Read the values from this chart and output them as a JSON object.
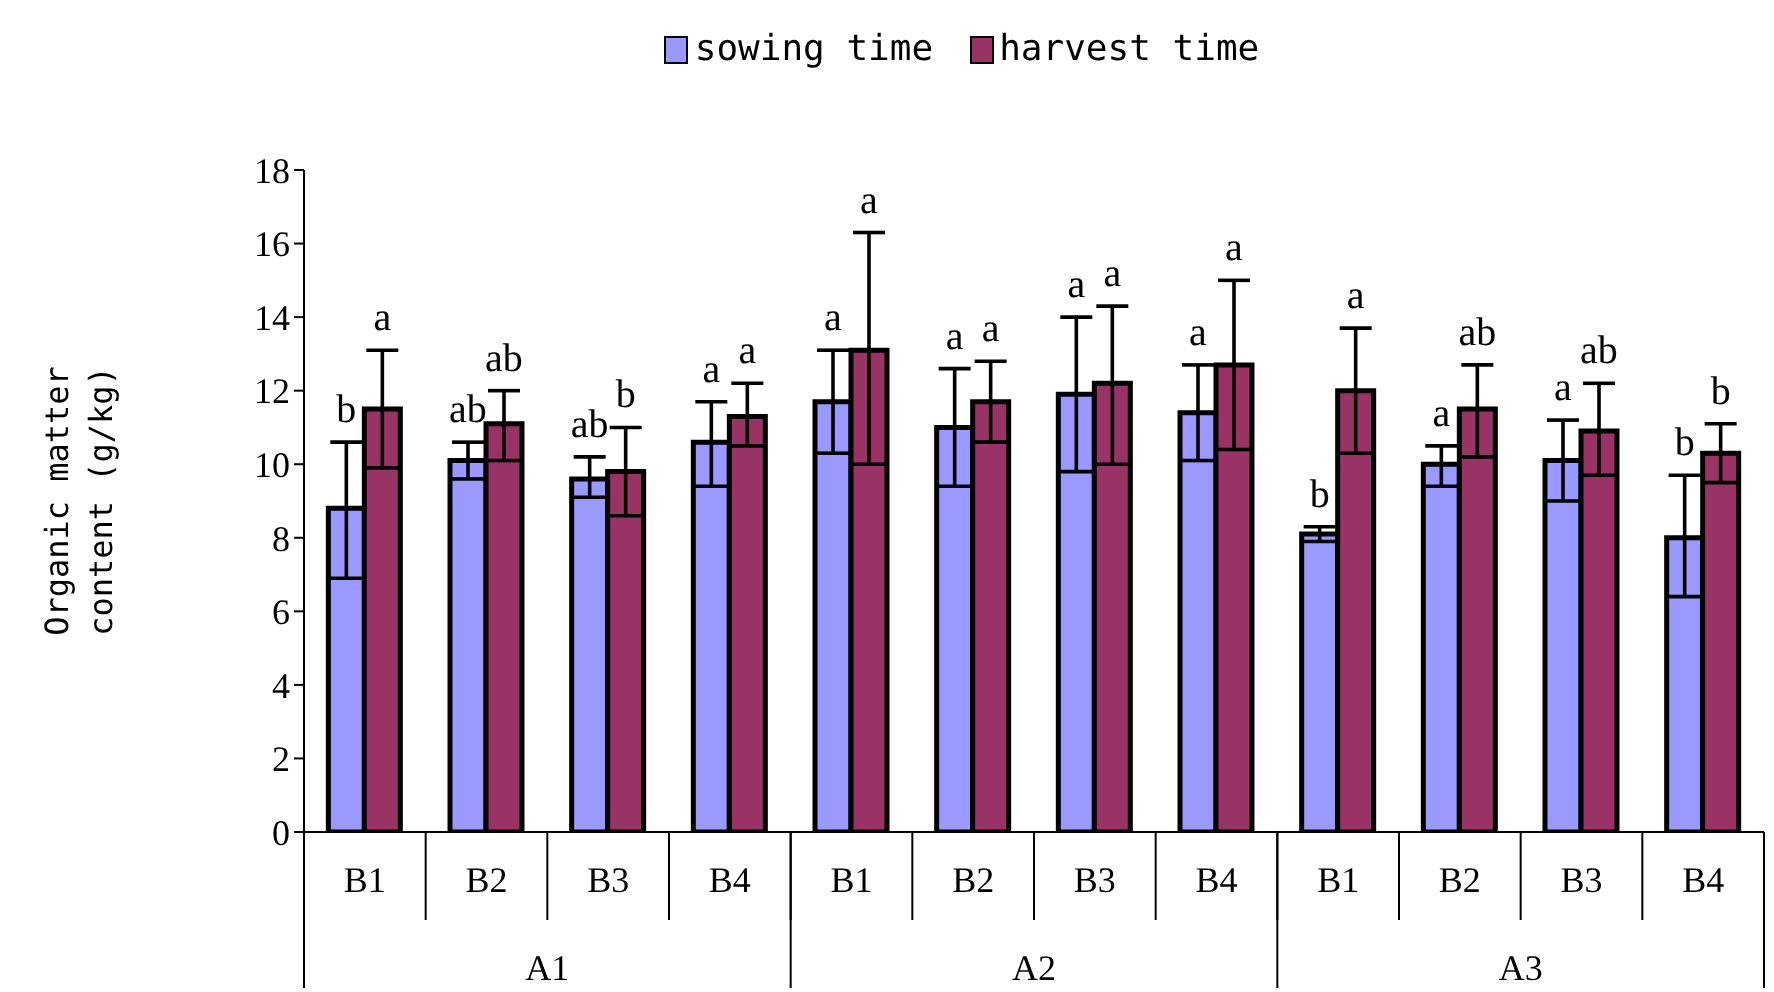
{
  "chart_data": {
    "type": "bar",
    "ylabel": "Organic matter content (g/kg)",
    "categories": [
      "B1",
      "B2",
      "B3",
      "B4",
      "B1",
      "B2",
      "B3",
      "B4",
      "B1",
      "B2",
      "B3",
      "B4"
    ],
    "annotations": [
      "A1",
      "A2",
      "A3"
    ],
    "series": [
      {
        "name": "sowing time",
        "color": "#9999ff",
        "values": [
          8.8,
          10.1,
          9.6,
          10.6,
          11.7,
          11.0,
          11.9,
          11.4,
          8.1,
          10.0,
          10.1,
          8.0
        ],
        "errors": [
          [
            6.9,
            10.6
          ],
          [
            9.6,
            10.6
          ],
          [
            9.1,
            10.2
          ],
          [
            9.4,
            11.7
          ],
          [
            10.3,
            13.1
          ],
          [
            9.4,
            12.6
          ],
          [
            9.8,
            14.0
          ],
          [
            10.1,
            12.7
          ],
          [
            7.9,
            8.3
          ],
          [
            9.4,
            10.5
          ],
          [
            9.0,
            11.2
          ],
          [
            6.4,
            9.7
          ]
        ],
        "value_labels": [
          "b",
          "ab",
          "ab",
          "a",
          "a",
          "a",
          "a",
          "a",
          "b",
          "a",
          "a",
          "b"
        ]
      },
      {
        "name": "harvest time",
        "color": "#993366",
        "values": [
          11.5,
          11.1,
          9.8,
          11.3,
          13.1,
          11.7,
          12.2,
          12.7,
          12.0,
          11.5,
          10.9,
          10.3
        ],
        "errors": [
          [
            9.9,
            13.1
          ],
          [
            10.1,
            12.0
          ],
          [
            8.6,
            11.0
          ],
          [
            10.5,
            12.2
          ],
          [
            10.0,
            16.3
          ],
          [
            10.6,
            12.8
          ],
          [
            10.0,
            14.3
          ],
          [
            10.4,
            15.0
          ],
          [
            10.3,
            13.7
          ],
          [
            10.2,
            12.7
          ],
          [
            9.7,
            12.2
          ],
          [
            9.5,
            11.1
          ]
        ],
        "value_labels": [
          "a",
          "ab",
          "b",
          "a",
          "a",
          "a",
          "a",
          "a",
          "a",
          "ab",
          "ab",
          "b"
        ]
      }
    ],
    "ylim": [
      0,
      18
    ],
    "yticks": [
      0,
      2,
      4,
      6,
      8,
      10,
      12,
      14,
      16,
      18
    ],
    "grid": false,
    "legend": "top"
  }
}
